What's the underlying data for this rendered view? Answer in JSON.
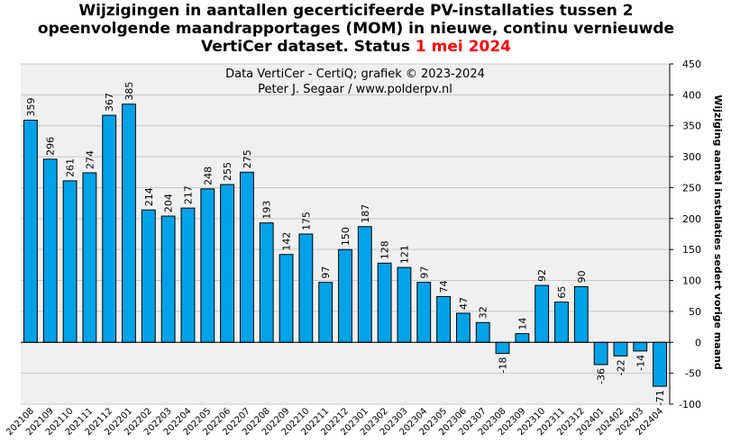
{
  "title": {
    "line1": "Wijzigingen in aantallen gecerticifeerde PV-installaties tussen 2",
    "line2": "opeenvolgende maandrapportages (MOM) in nieuwe, continu vernieuwde",
    "line3_prefix": "VertiCer dataset. Status ",
    "line3_date": "1 mei 2024",
    "date_color": "#ff0000"
  },
  "credits": {
    "line1": "Data VertiCer - CertiQ; grafiek © 2023-2024",
    "line2": "Peter J. Segaar / www.polderpv.nl"
  },
  "chart_data": {
    "type": "bar",
    "categories": [
      "202108",
      "202109",
      "202110",
      "202111",
      "202112",
      "202201",
      "202202",
      "202203",
      "202204",
      "202205",
      "202206",
      "202207",
      "202208",
      "202209",
      "202210",
      "202211",
      "202212",
      "202301",
      "202302",
      "202303",
      "202304",
      "202305",
      "202306",
      "202307",
      "202308",
      "202309",
      "202310",
      "202311",
      "202312",
      "202401",
      "202402",
      "202403",
      "202404"
    ],
    "values": [
      359,
      296,
      261,
      274,
      367,
      385,
      214,
      204,
      217,
      248,
      255,
      275,
      193,
      142,
      175,
      97,
      150,
      187,
      128,
      121,
      97,
      74,
      47,
      32,
      -18,
      14,
      92,
      65,
      90,
      -36,
      -22,
      -14,
      -71
    ],
    "data_labels": [
      "359",
      "296",
      "261",
      "274",
      "367",
      "385",
      "214",
      "204",
      "217",
      "248",
      "255",
      "275",
      "193",
      "142",
      "175",
      "97",
      "150",
      "187",
      "128",
      "121",
      "97",
      "74",
      "47",
      "32",
      "-18",
      "14",
      "92",
      "65",
      "90",
      "-36",
      "-22",
      "-14",
      "-71"
    ],
    "ylabel": "Wijziging aantal installaties sedert vorige maand",
    "ylim": [
      -100,
      450
    ],
    "yticks": [
      "-100",
      "-50",
      "0",
      "50",
      "100",
      "150",
      "200",
      "250",
      "300",
      "350",
      "400",
      "450"
    ],
    "ytick_values": [
      -100,
      -50,
      0,
      50,
      100,
      150,
      200,
      250,
      300,
      350,
      400,
      450
    ],
    "y_axis_side": "right",
    "grid": true,
    "bar_color": "#00a2e8",
    "bar_edge_color": "#000000",
    "grid_color": "#c8c8c8"
  }
}
